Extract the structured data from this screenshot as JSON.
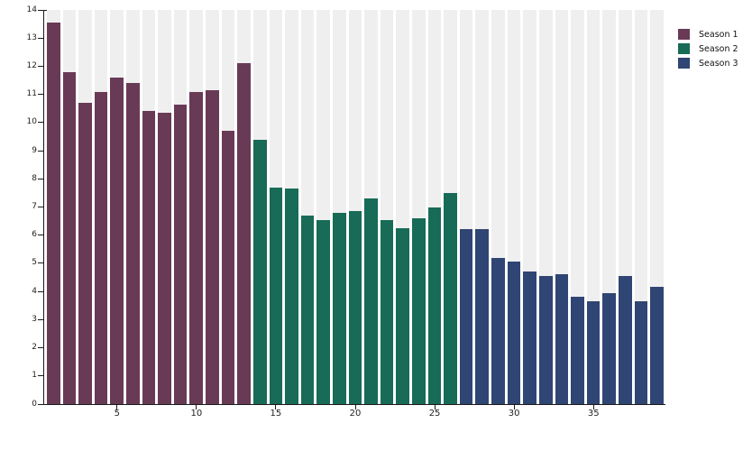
{
  "chart_data": {
    "type": "bar",
    "title": "",
    "xlabel": "",
    "ylabel": "",
    "ylim": [
      0,
      14
    ],
    "y_ticks": [
      0,
      1,
      2,
      3,
      4,
      5,
      6,
      7,
      8,
      9,
      10,
      11,
      12,
      13,
      14
    ],
    "x_ticks": [
      5,
      10,
      15,
      20,
      25,
      30,
      35
    ],
    "x_range": [
      1,
      39
    ],
    "grid": "off",
    "column_background_color": "#efefef",
    "axis_color": "#1a1a1a",
    "tick_label_color": "#1f1f1f",
    "legend_position": "top-right-outside",
    "series": [
      {
        "name": "Season 1",
        "color": "#693a56",
        "x_start": 1,
        "values": [
          13.55,
          11.8,
          10.7,
          11.1,
          11.6,
          11.4,
          10.4,
          10.35,
          10.65,
          11.1,
          11.15,
          9.7,
          12.1
        ]
      },
      {
        "name": "Season 2",
        "color": "#176b57",
        "x_start": 14,
        "values": [
          9.4,
          7.7,
          7.65,
          6.7,
          6.55,
          6.8,
          6.85,
          7.3,
          6.55,
          6.25,
          6.6,
          7.0,
          7.5
        ]
      },
      {
        "name": "Season 3",
        "color": "#2f4573",
        "x_start": 27,
        "values": [
          6.2,
          6.2,
          5.2,
          5.05,
          4.7,
          4.55,
          4.6,
          3.8,
          3.65,
          3.95,
          4.55,
          3.65,
          4.15
        ]
      }
    ]
  },
  "legend": {
    "items": [
      {
        "label": "Season 1",
        "color": "#693a56"
      },
      {
        "label": "Season 2",
        "color": "#176b57"
      },
      {
        "label": "Season 3",
        "color": "#2f4573"
      }
    ]
  }
}
